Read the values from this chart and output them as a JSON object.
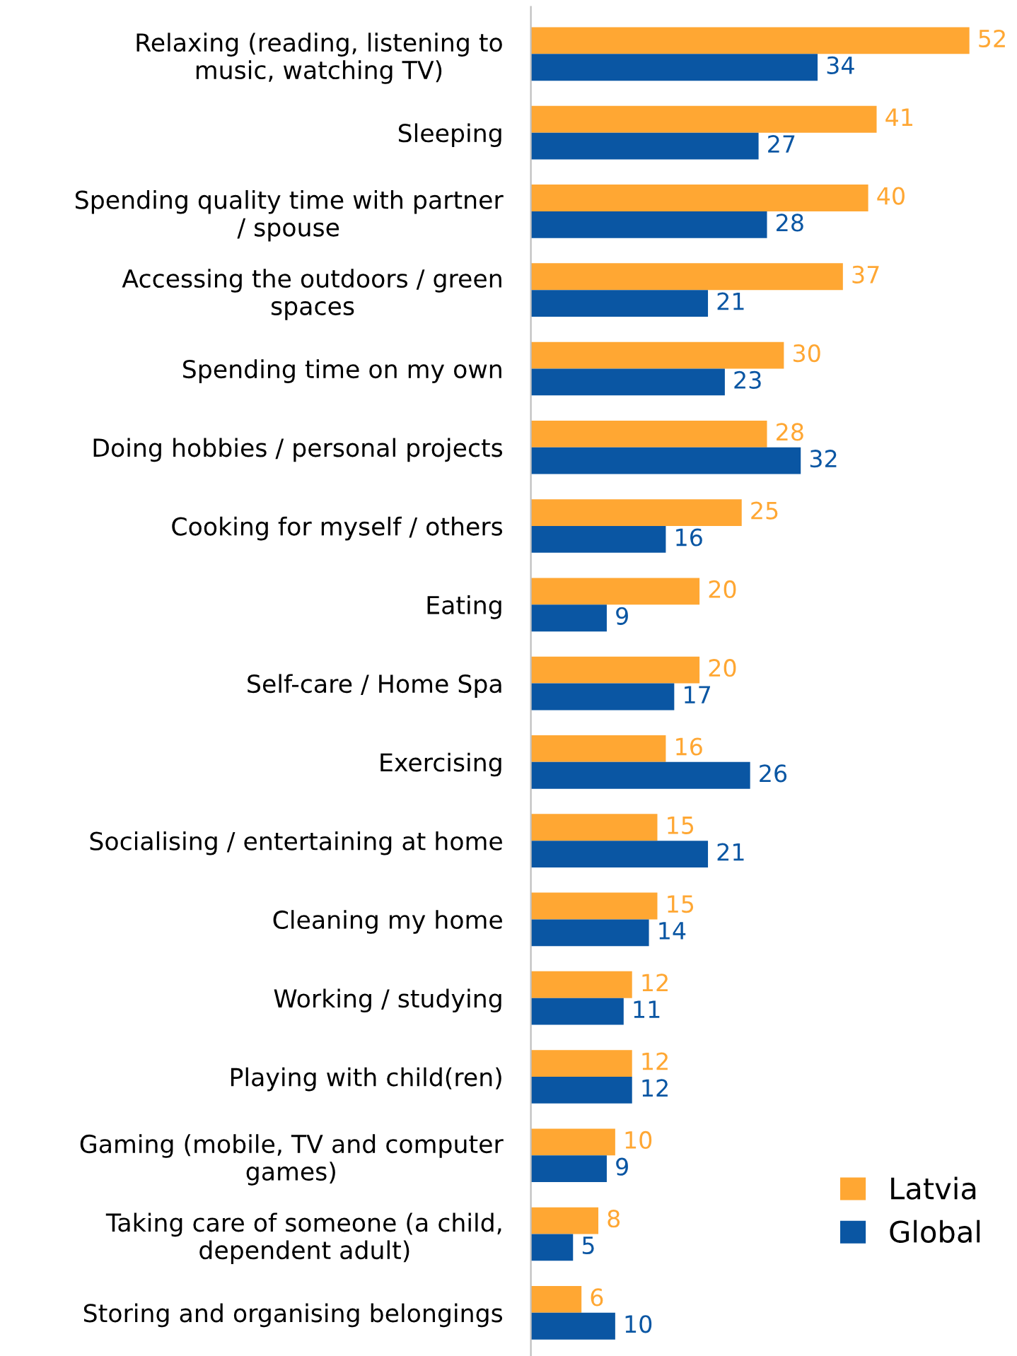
{
  "chart_data": {
    "type": "bar",
    "orientation": "horizontal",
    "categories": [
      "Relaxing (reading, listening to\nmusic, watching TV)",
      "Sleeping",
      "Spending quality time with partner\n/ spouse",
      "Accessing the outdoors / green\nspaces",
      "Spending time on my own",
      "Doing hobbies / personal projects",
      "Cooking for myself / others",
      "Eating",
      "Self-care / Home Spa",
      "Exercising",
      "Socialising / entertaining at home",
      "Cleaning my home",
      "Working / studying",
      "Playing with child(ren)",
      "Gaming (mobile, TV and computer\ngames)",
      "Taking care of someone (a child,\ndependent adult)",
      "Storing and organising belongings"
    ],
    "series": [
      {
        "name": "Latvia",
        "color": "#ffa733",
        "values": [
          52,
          41,
          40,
          37,
          30,
          28,
          25,
          20,
          20,
          16,
          15,
          15,
          12,
          12,
          10,
          8,
          6
        ]
      },
      {
        "name": "Global",
        "color": "#0a56a3",
        "values": [
          34,
          27,
          28,
          21,
          23,
          32,
          16,
          9,
          17,
          26,
          21,
          14,
          11,
          12,
          9,
          5,
          10
        ]
      }
    ],
    "data_labels": true,
    "tick_labels": "y",
    "legend": "bottom right",
    "grid": false
  }
}
